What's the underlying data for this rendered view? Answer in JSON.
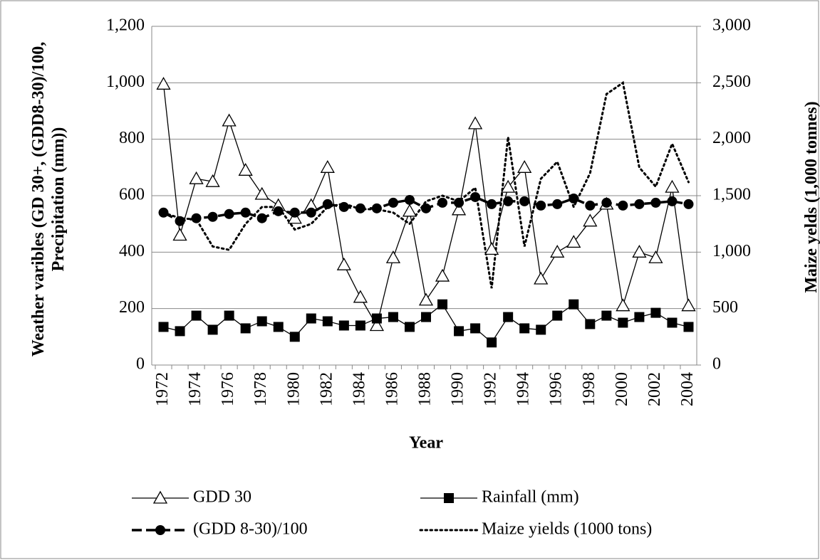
{
  "chart_data": {
    "type": "line",
    "x_label": "Year",
    "y_label": "Weather varibles (GD 30+, (GDD8-30)/100, Precipitation (mm))",
    "y2_label": "Maize yelds (1,000 tonnes)",
    "categories": [
      "1972",
      null,
      "1974",
      null,
      "1976",
      null,
      "1978",
      null,
      "1980",
      null,
      "1982",
      null,
      "1984",
      null,
      "1986",
      null,
      "1988",
      null,
      "1990",
      null,
      "1992",
      null,
      "1994",
      null,
      "1996",
      null,
      "1998",
      null,
      "2000",
      null,
      "2002",
      null,
      "2004"
    ],
    "ylim": [
      0,
      1200
    ],
    "yticks": [
      0,
      200,
      400,
      600,
      800,
      {
        "value": 1000,
        "label": "1,000"
      },
      {
        "value": 1200,
        "label": "1,200"
      }
    ],
    "y2lim": [
      0,
      3000
    ],
    "y2ticks": [
      0,
      500,
      {
        "value": 1000,
        "label": "1,000"
      },
      {
        "value": 1500,
        "label": "1,500"
      },
      {
        "value": 2000,
        "label": "2,000"
      },
      {
        "value": 2500,
        "label": "2,500"
      },
      {
        "value": 3000,
        "label": "3,000"
      }
    ],
    "grid": true,
    "series": [
      {
        "name": "GDD 30",
        "color": "#000000",
        "marker": "triangle",
        "dash": "solid",
        "width": 1.3,
        "values": [
          995,
          460,
          660,
          650,
          865,
          690,
          605,
          565,
          520,
          565,
          700,
          355,
          240,
          140,
          380,
          545,
          230,
          315,
          550,
          855,
          410,
          630,
          700,
          305,
          400,
          435,
          510,
          570,
          210,
          400,
          380,
          630,
          210
        ]
      },
      {
        "name": "Rainfall (mm)",
        "color": "#000000",
        "marker": "square",
        "dash": "solid",
        "width": 1.3,
        "values": [
          135,
          120,
          175,
          125,
          175,
          130,
          155,
          135,
          100,
          165,
          155,
          140,
          140,
          165,
          170,
          135,
          170,
          215,
          120,
          130,
          80,
          170,
          130,
          125,
          175,
          215,
          145,
          175,
          150,
          170,
          185,
          150,
          135
        ]
      },
      {
        "name": "(GDD 8-30)/100",
        "color": "#000000",
        "marker": "circle",
        "dash": "dashed",
        "width": 3.5,
        "values": [
          540,
          510,
          520,
          525,
          535,
          540,
          520,
          545,
          540,
          540,
          570,
          560,
          555,
          555,
          575,
          585,
          555,
          575,
          575,
          595,
          570,
          580,
          580,
          565,
          570,
          590,
          565,
          575,
          565,
          570,
          575,
          580,
          570
        ]
      },
      {
        "name": "Maize yields (1000 tons)",
        "color": "#000000",
        "marker": "none",
        "dash": "dotted",
        "width": 3,
        "axis": "y2",
        "values": [
          1350,
          1300,
          1290,
          1050,
          1020,
          1250,
          1400,
          1400,
          1200,
          1250,
          1400,
          1430,
          1380,
          1380,
          1350,
          1250,
          1450,
          1500,
          1450,
          1570,
          680,
          2020,
          1050,
          1650,
          1800,
          1400,
          1700,
          2400,
          2500,
          1750,
          1580,
          1960,
          1620
        ]
      }
    ]
  }
}
